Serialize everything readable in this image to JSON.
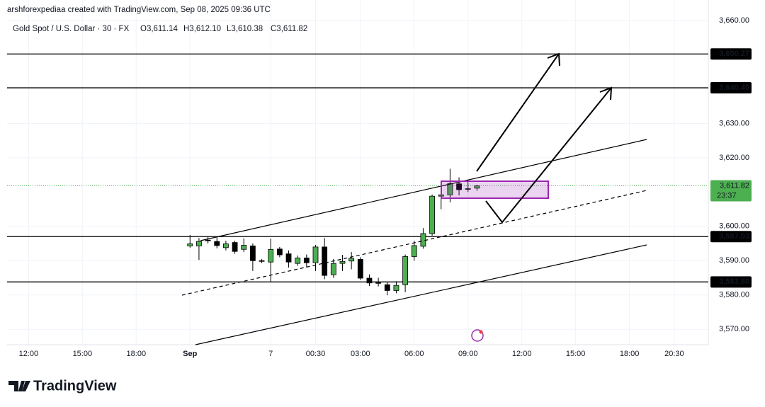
{
  "header": {
    "watermark": "arshforexpediaa created with TradingView.com, Sep 08, 2025 09:36 UTC",
    "symbol": "Gold Spot / U.S. Dollar · 30 · FX",
    "open": "O3,611.14",
    "high": "H3,612.10",
    "low": "L3,610.38",
    "close": "C3,611.82"
  },
  "footer": {
    "brand": "TradingView"
  },
  "chart_data": {
    "type": "candlestick",
    "x": [
      0,
      1,
      2,
      3,
      4,
      5,
      6,
      7,
      8,
      9,
      10,
      11,
      12,
      13,
      14,
      15,
      16,
      17,
      18,
      19,
      20,
      21,
      22,
      23,
      24,
      25,
      26,
      27,
      28,
      29,
      30,
      31,
      32
    ],
    "open": [
      3594.3,
      3594.3,
      3596.0,
      3595.6,
      3593.8,
      3595.3,
      3593.3,
      3594.3,
      3590.0,
      3589.6,
      3593.4,
      3592.0,
      3589.2,
      3590.8,
      3589.4,
      3594.0,
      3585.9,
      3589.2,
      3589.9,
      3590.4,
      3584.9,
      3583.5,
      3583.0,
      3581.3,
      3583.0,
      3591.2,
      3594.2,
      3597.9,
      3608.8,
      3609.2,
      3612.4,
      3611.0,
      3611.14
    ],
    "high": [
      3597.5,
      3596.6,
      3597.0,
      3596.8,
      3595.8,
      3595.8,
      3596.5,
      3595.0,
      3590.5,
      3596.4,
      3594.0,
      3593.0,
      3591.5,
      3591.8,
      3594.6,
      3596.6,
      3590.5,
      3591.7,
      3592.5,
      3591.0,
      3586.0,
      3585.0,
      3583.8,
      3584.0,
      3591.8,
      3595.8,
      3599.5,
      3609.3,
      3611.0,
      3616.8,
      3614.3,
      3613.5,
      3612.1
    ],
    "low": [
      3593.8,
      3590.2,
      3595.0,
      3593.6,
      3593.0,
      3592.0,
      3592.5,
      3587.0,
      3589.3,
      3583.8,
      3591.0,
      3588.0,
      3588.5,
      3588.0,
      3587.0,
      3584.6,
      3585.0,
      3587.0,
      3587.5,
      3584.4,
      3582.6,
      3582.5,
      3579.9,
      3580.5,
      3580.8,
      3590.0,
      3593.5,
      3597.3,
      3605.0,
      3607.0,
      3609.0,
      3610.0,
      3610.38
    ],
    "close": [
      3594.9,
      3595.6,
      3595.8,
      3594.4,
      3594.9,
      3592.7,
      3594.5,
      3590.0,
      3589.8,
      3593.3,
      3591.7,
      3589.6,
      3590.8,
      3589.4,
      3594.0,
      3585.7,
      3589.2,
      3589.8,
      3590.7,
      3584.9,
      3583.5,
      3583.6,
      3581.3,
      3582.8,
      3591.2,
      3594.4,
      3597.9,
      3608.8,
      3609.2,
      3612.5,
      3610.7,
      3611.0,
      3611.82
    ],
    "up_color": "#4caf50",
    "down_color": "#000000",
    "xlim": [
      -20.4,
      57.8
    ],
    "xticks": [
      {
        "value": -18,
        "label": "12:00"
      },
      {
        "value": -12,
        "label": "15:00"
      },
      {
        "value": -6,
        "label": "18:00"
      },
      {
        "value": 0,
        "label": "Sep"
      },
      {
        "value": 9,
        "label": "7"
      },
      {
        "value": 14,
        "label": "00:30"
      },
      {
        "value": 19,
        "label": "03:00"
      },
      {
        "value": 25,
        "label": "06:00"
      },
      {
        "value": 31,
        "label": "09:00"
      },
      {
        "value": 37,
        "label": "12:00"
      },
      {
        "value": 43,
        "label": "15:00"
      },
      {
        "value": 49,
        "label": "18:00"
      },
      {
        "value": 54,
        "label": "20:30"
      }
    ],
    "ylim": [
      3565.5,
      3666
    ],
    "yticks": [
      {
        "value": 3570,
        "label": "3,570.00"
      },
      {
        "value": 3580,
        "label": "3,580.00"
      },
      {
        "value": 3590,
        "label": "3,590.00"
      },
      {
        "value": 3600,
        "label": "3,600.00"
      },
      {
        "value": 3620,
        "label": "3,620.00"
      },
      {
        "value": 3630,
        "label": "3,630.00"
      },
      {
        "value": 3660,
        "label": "3,660.00"
      }
    ],
    "grid": true,
    "hlines": [
      {
        "value": 3650.27,
        "label": "3,650.27"
      },
      {
        "value": 3640.4,
        "label": "3,640.40"
      },
      {
        "value": 3597.03,
        "label": "3,597.03"
      },
      {
        "value": 3583.8,
        "label": "3,583.80"
      }
    ],
    "last_price": {
      "value": 3611.82,
      "label": "3,611.82",
      "countdown": "23:37",
      "color": "#4caf50"
    }
  }
}
